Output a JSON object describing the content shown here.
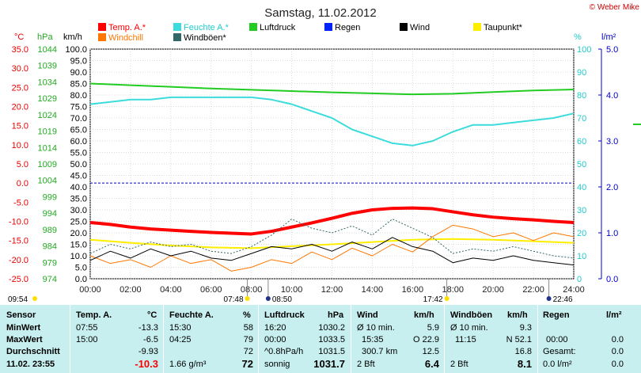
{
  "header": {
    "title": "Samstag, 11.02.2012",
    "copyright": "© Weber Mike"
  },
  "legend": [
    {
      "label": "Temp. A.*",
      "color": "#ff0000"
    },
    {
      "label": "Feuchte A.*",
      "color": "#3ddcdc"
    },
    {
      "label": "Luftdruck",
      "color": "#22cc22"
    },
    {
      "label": "Regen",
      "color": "#0022ff"
    },
    {
      "label": "Wind",
      "color": "#000000"
    },
    {
      "label": "Taupunkt*",
      "color": "#ffee00"
    },
    {
      "label": "Windchill",
      "color": "#ff7700"
    },
    {
      "label": "Windböen*",
      "color": "#336666"
    }
  ],
  "axis_units": {
    "temp": "°C",
    "pressure": "hPa",
    "wind": "km/h",
    "humidity": "%",
    "rain": "l/m²"
  },
  "sun_markers": {
    "sunrise": "07:48",
    "sunset": "17:42",
    "moonrise": "08:50",
    "moonset": "22:46",
    "first_light": "09:54"
  },
  "chart_data": {
    "type": "line",
    "xlabel": "",
    "x_ticks": [
      "00:00",
      "02:00",
      "04:00",
      "06:00",
      "08:00",
      "10:00",
      "12:00",
      "14:00",
      "16:00",
      "18:00",
      "20:00",
      "22:00",
      "24:00"
    ],
    "axes": {
      "temp": {
        "range": [
          -25,
          35
        ],
        "ticks": [
          "35.0",
          "30.0",
          "25.0",
          "20.0",
          "15.0",
          "10.0",
          "5.0",
          "0.0",
          "-5.0",
          "-10.0",
          "-15.0",
          "-20.0",
          "-25.0"
        ]
      },
      "pressure": {
        "range": [
          974,
          1044
        ],
        "ticks": [
          "1044",
          "1039",
          "1034",
          "1029",
          "1024",
          "1019",
          "1014",
          "1009",
          "1004",
          "999",
          "994",
          "989",
          "984",
          "979",
          "974"
        ]
      },
      "wind": {
        "range": [
          0,
          100
        ],
        "ticks": [
          "100.0",
          "95.0",
          "90.0",
          "85.0",
          "80.0",
          "75.0",
          "70.0",
          "65.0",
          "60.0",
          "55.0",
          "50.0",
          "45.0",
          "40.0",
          "35.0",
          "30.0",
          "25.0",
          "20.0",
          "15.0",
          "10.0",
          "5.0",
          "0.0"
        ]
      },
      "humidity": {
        "range": [
          0,
          100
        ],
        "ticks": [
          "100",
          "90",
          "80",
          "70",
          "60",
          "50",
          "40",
          "30",
          "20",
          "10",
          "0"
        ]
      },
      "rain": {
        "range": [
          0,
          5
        ],
        "ticks": [
          "5.0",
          "4.0",
          "3.0",
          "2.0",
          "1.0",
          "0.0"
        ]
      }
    },
    "series": [
      {
        "name": "Temp. A.",
        "axis": "temp",
        "color": "#ff0000",
        "x": [
          0,
          1,
          2,
          3,
          4,
          5,
          6,
          7,
          8,
          9,
          10,
          11,
          12,
          13,
          14,
          15,
          16,
          17,
          18,
          19,
          20,
          21,
          22,
          23,
          24
        ],
        "y": [
          -10.3,
          -10.8,
          -11.5,
          -12.0,
          -12.3,
          -12.6,
          -12.9,
          -13.1,
          -13.3,
          -12.6,
          -11.5,
          -10.4,
          -9.2,
          -7.9,
          -7.0,
          -6.6,
          -6.5,
          -6.7,
          -7.5,
          -8.3,
          -8.9,
          -9.3,
          -9.6,
          -10.0,
          -10.3
        ]
      },
      {
        "name": "Feuchte A.",
        "axis": "humidity",
        "color": "#3ddcdc",
        "x": [
          0,
          1,
          2,
          3,
          4,
          5,
          6,
          7,
          8,
          9,
          10,
          11,
          12,
          13,
          14,
          15,
          16,
          17,
          18,
          19,
          20,
          21,
          22,
          23,
          24
        ],
        "y": [
          76,
          77,
          78,
          78,
          79,
          79,
          79,
          79,
          79,
          78,
          76,
          73,
          70,
          65,
          62,
          59,
          58,
          60,
          64,
          67,
          67,
          68,
          69,
          70,
          72
        ]
      },
      {
        "name": "Luftdruck",
        "axis": "pressure",
        "color": "#22cc22",
        "x": [
          0,
          2,
          4,
          6,
          8,
          10,
          12,
          14,
          16,
          18,
          20,
          22,
          24
        ],
        "y": [
          1033.5,
          1033.0,
          1032.5,
          1032.0,
          1031.6,
          1031.2,
          1030.8,
          1030.5,
          1030.2,
          1030.4,
          1030.9,
          1031.4,
          1031.7
        ]
      },
      {
        "name": "Taupunkt",
        "axis": "temp",
        "color": "#ffee00",
        "x": [
          0,
          2,
          4,
          6,
          8,
          10,
          12,
          14,
          16,
          18,
          20,
          22,
          24
        ],
        "y": [
          -14.8,
          -15.6,
          -16.3,
          -16.8,
          -17.0,
          -16.5,
          -16.0,
          -15.4,
          -14.8,
          -14.6,
          -14.8,
          -15.2,
          -15.6
        ]
      },
      {
        "name": "Windchill",
        "axis": "temp",
        "color": "#ff7700",
        "x": [
          0,
          1,
          2,
          3,
          4,
          5,
          6,
          7,
          8,
          9,
          10,
          11,
          12,
          13,
          14,
          15,
          16,
          17,
          18,
          19,
          20,
          21,
          22,
          23,
          24
        ],
        "y": [
          -19,
          -21,
          -20,
          -22,
          -19,
          -21,
          -20,
          -23,
          -22,
          -20,
          -21,
          -18,
          -20,
          -17,
          -19,
          -16,
          -18,
          -14,
          -11,
          -12,
          -14,
          -13,
          -15,
          -13,
          -14
        ]
      },
      {
        "name": "Wind",
        "axis": "wind",
        "color": "#000000",
        "x": [
          0,
          1,
          2,
          3,
          4,
          5,
          6,
          7,
          8,
          9,
          10,
          11,
          12,
          13,
          14,
          15,
          16,
          17,
          18,
          19,
          20,
          21,
          22,
          23,
          24
        ],
        "y": [
          8,
          12,
          9,
          13,
          10,
          12,
          9,
          8,
          11,
          14,
          13,
          15,
          12,
          16,
          13,
          18,
          14,
          12,
          7,
          9,
          8,
          10,
          8,
          7,
          6
        ]
      },
      {
        "name": "Windböen",
        "axis": "wind",
        "color": "#336666",
        "x": [
          0,
          1,
          2,
          3,
          4,
          5,
          6,
          7,
          8,
          9,
          10,
          11,
          12,
          13,
          14,
          15,
          16,
          17,
          18,
          19,
          20,
          21,
          22,
          23,
          24
        ],
        "y": [
          11,
          15,
          13,
          16,
          14,
          15,
          12,
          11,
          14,
          19,
          26,
          22,
          20,
          23,
          19,
          26,
          22,
          18,
          11,
          13,
          12,
          14,
          12,
          10,
          9
        ]
      }
    ]
  },
  "stats": {
    "header": {
      "sensor": "Sensor",
      "temp": "Temp. A.",
      "temp_unit": "°C",
      "hum": "Feuchte A.",
      "hum_unit": "%",
      "press": "Luftdruck",
      "press_unit": "hPa",
      "wind": "Wind",
      "wind_unit": "km/h",
      "gust": "Windböen",
      "gust_unit": "km/h",
      "rain": "Regen",
      "rain_unit": "l/m²"
    },
    "rows": [
      {
        "label": "MinWert",
        "temp_time": "07:55",
        "temp": "-13.3",
        "hum_time": "15:30",
        "hum": "58",
        "press_time": "16:20",
        "press": "1030.2",
        "wind_desc": "Ø 10 min.",
        "wind": "5.9",
        "gust_desc": "Ø 10 min.",
        "gust": "9.3",
        "rain_time": "",
        "rain": ""
      },
      {
        "label": "MaxWert",
        "temp_time": "15:00",
        "temp": "-6.5",
        "hum_time": "04:25",
        "hum": "79",
        "press_time": "00:00",
        "press": "1033.5",
        "wind_desc": "15:35",
        "wind_dir": "O 22.9",
        "wind": "",
        "gust_desc": "11:15",
        "gust_dir": "N 52.1",
        "gust": "",
        "rain_time": "00:00",
        "rain": "0.0"
      },
      {
        "label": "Durchschnitt",
        "temp_time": "",
        "temp": "-9.93",
        "hum_time": "",
        "hum": "72",
        "press_time": "^0.8hPa/h",
        "press": "1031.5",
        "wind_desc": "300.7 km",
        "wind": "12.5",
        "gust_desc": "",
        "gust": "16.8",
        "rain_time": "Gesamt:",
        "rain": "0.0"
      },
      {
        "label": "11.02. 23:55",
        "temp_time": "",
        "temp": "-10.3",
        "hum_time": "1.66 g/m³",
        "hum": "72",
        "press_time": "sonnig",
        "press": "1031.7",
        "wind_desc": "2 Bft",
        "wind": "6.4",
        "gust_desc": "2 Bft",
        "gust": "8.1",
        "rain_time": "0.0 l/m²",
        "rain": "0.0"
      }
    ]
  }
}
